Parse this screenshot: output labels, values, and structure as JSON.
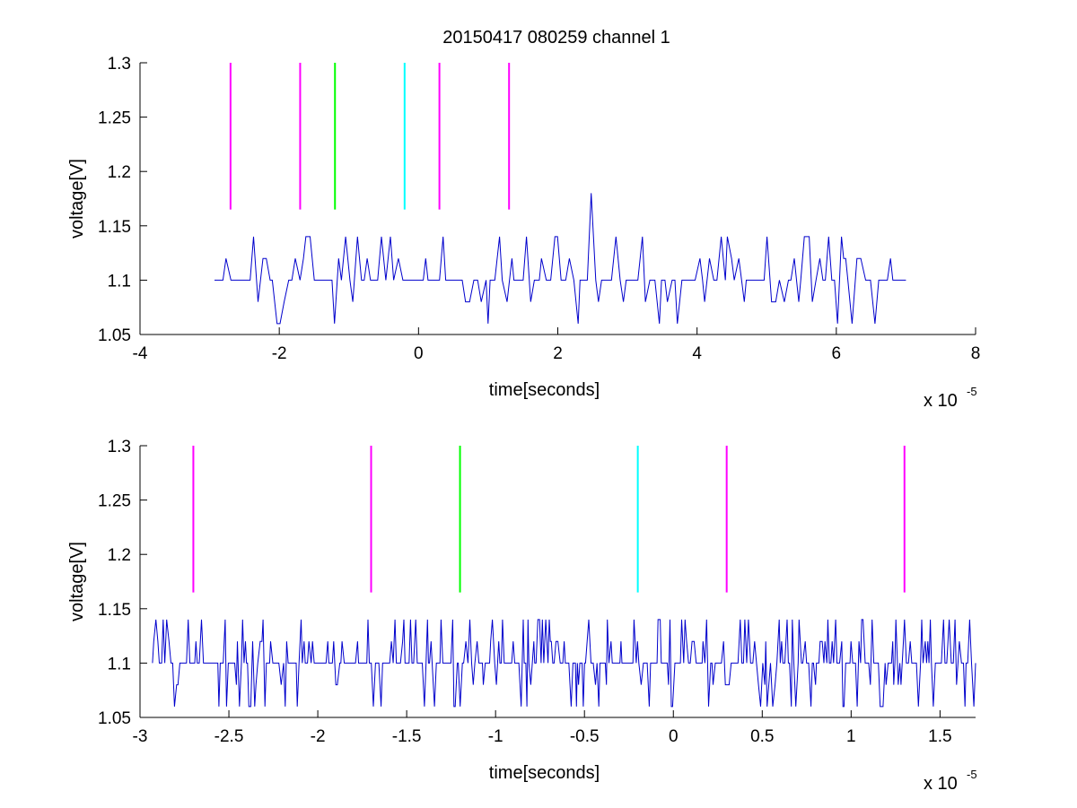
{
  "title": "20150417 080259 channel 1",
  "chart_data": [
    {
      "type": "line",
      "xlabel": "time[seconds]",
      "ylabel": "voltage[V]",
      "x_exponent_label": "x 10",
      "x_exponent": "-5",
      "xlim": [
        -4,
        8
      ],
      "ylim": [
        1.05,
        1.3
      ],
      "xticks": [
        "-4",
        "-2",
        "0",
        "2",
        "4",
        "6",
        "8"
      ],
      "yticks": [
        "1.05",
        "1.1",
        "1.15",
        "1.2",
        "1.25",
        "1.3"
      ],
      "trace": {
        "color": "#0000cc",
        "x_range": [
          -2.93,
          7.0
        ],
        "baseline": 1.1,
        "levels": [
          1.06,
          1.08,
          1.1,
          1.12,
          1.14
        ],
        "spike": {
          "x": 2.5,
          "y": 1.18
        }
      },
      "markers": [
        {
          "x": -2.7,
          "color": "#ff00ff",
          "y_range": [
            1.165,
            1.3
          ]
        },
        {
          "x": -1.7,
          "color": "#ff00ff",
          "y_range": [
            1.165,
            1.3
          ]
        },
        {
          "x": -1.2,
          "color": "#00ff00",
          "y_range": [
            1.165,
            1.3
          ]
        },
        {
          "x": -0.2,
          "color": "#00ffff",
          "y_range": [
            1.165,
            1.3
          ]
        },
        {
          "x": 0.3,
          "color": "#ff00ff",
          "y_range": [
            1.165,
            1.3
          ]
        },
        {
          "x": 1.3,
          "color": "#ff00ff",
          "y_range": [
            1.165,
            1.3
          ]
        }
      ]
    },
    {
      "type": "line",
      "xlabel": "time[seconds]",
      "ylabel": "voltage[V]",
      "x_exponent_label": "x 10",
      "x_exponent": "-5",
      "xlim": [
        -3.0,
        1.7
      ],
      "ylim": [
        1.05,
        1.3
      ],
      "xticks": [
        "-3",
        "-2.5",
        "-2",
        "-1.5",
        "-1",
        "-0.5",
        "0",
        "0.5",
        "1",
        "1.5"
      ],
      "yticks": [
        "1.05",
        "1.1",
        "1.15",
        "1.2",
        "1.25",
        "1.3"
      ],
      "trace": {
        "color": "#0000cc",
        "x_range": [
          -2.93,
          1.7
        ],
        "baseline": 1.1,
        "levels": [
          1.06,
          1.08,
          1.1,
          1.12,
          1.14
        ]
      },
      "markers": [
        {
          "x": -2.7,
          "color": "#ff00ff",
          "y_range": [
            1.165,
            1.3
          ]
        },
        {
          "x": -1.7,
          "color": "#ff00ff",
          "y_range": [
            1.165,
            1.3
          ]
        },
        {
          "x": -1.2,
          "color": "#00ff00",
          "y_range": [
            1.165,
            1.3
          ]
        },
        {
          "x": -0.2,
          "color": "#00ffff",
          "y_range": [
            1.165,
            1.3
          ]
        },
        {
          "x": 0.3,
          "color": "#ff00ff",
          "y_range": [
            1.165,
            1.3
          ]
        },
        {
          "x": 1.3,
          "color": "#ff00ff",
          "y_range": [
            1.165,
            1.3
          ]
        }
      ]
    }
  ]
}
